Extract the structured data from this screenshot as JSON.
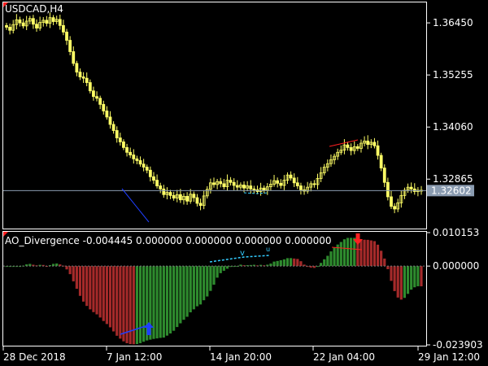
{
  "window": {
    "symbol_title": "USDCAD,H4"
  },
  "price_axis": {
    "ticks": [
      "1.36450",
      "1.35255",
      "1.34060",
      "1.32865"
    ],
    "tick_values": [
      1.3645,
      1.35255,
      1.3406,
      1.32865
    ],
    "current_price": "1.32602",
    "current_value": 1.32602
  },
  "indicator": {
    "title": "AO_Divergence -0.004445 0.000000 0.000000 0.000000 0.000000",
    "ticks": [
      "0.010153",
      "0.000000",
      "-0.023903"
    ],
    "tick_values": [
      0.010153,
      0.0,
      -0.023903
    ]
  },
  "time_axis": {
    "labels": [
      "28 Dec 2018",
      "7 Jan 12:00",
      "14 Jan 20:00",
      "22 Jan 04:00",
      "29 Jan 12:00"
    ]
  },
  "colors": {
    "background": "#000000",
    "grid_frame": "#ffffff",
    "candle": "#ffff66",
    "current_line": "#8a9bb0",
    "price_badge": "#8a9bb0",
    "ao_up": "#2e8b2e",
    "ao_down": "#a52a2a",
    "bull_divergence": "#1f3fff",
    "bear_divergence": "#ff2020",
    "hidden_divergence": "#33ccff",
    "arrow_up": "#1f3fff",
    "arrow_down": "#ff2020"
  },
  "chart_data": {
    "type": "candlestick",
    "symbol": "USDCAD",
    "timeframe": "H4",
    "ylim": [
      1.3175,
      1.369
    ],
    "close_series": [
      1.3635,
      1.3628,
      1.3641,
      1.3652,
      1.3645,
      1.3638,
      1.3649,
      1.3655,
      1.3642,
      1.3633,
      1.3646,
      1.3651,
      1.3644,
      1.3657,
      1.3648,
      1.3653,
      1.3639,
      1.3624,
      1.3605,
      1.3579,
      1.3552,
      1.3532,
      1.3521,
      1.3518,
      1.3508,
      1.3489,
      1.3476,
      1.3472,
      1.3458,
      1.3443,
      1.3429,
      1.3412,
      1.3398,
      1.3381,
      1.3372,
      1.3359,
      1.3348,
      1.3342,
      1.3333,
      1.3329,
      1.3321,
      1.3314,
      1.3307,
      1.3292,
      1.3284,
      1.3271,
      1.3264,
      1.3251,
      1.3256,
      1.3249,
      1.3243,
      1.3251,
      1.3239,
      1.3247,
      1.3236,
      1.3252,
      1.3244,
      1.3231,
      1.3226,
      1.3248,
      1.3263,
      1.3278,
      1.3274,
      1.3281,
      1.3276,
      1.3269,
      1.3284,
      1.3279,
      1.3272,
      1.3268,
      1.3273,
      1.3266,
      1.3271,
      1.3264,
      1.3262,
      1.3258,
      1.3266,
      1.3261,
      1.3269,
      1.3275,
      1.3283,
      1.3277,
      1.3272,
      1.3284,
      1.3296,
      1.3289,
      1.3278,
      1.3271,
      1.3262,
      1.3259,
      1.3268,
      1.3276,
      1.3274,
      1.3288,
      1.3301,
      1.3314,
      1.3322,
      1.3331,
      1.3339,
      1.3348,
      1.3353,
      1.3365,
      1.3359,
      1.3352,
      1.3361,
      1.3357,
      1.3369,
      1.3374,
      1.3366,
      1.3371,
      1.3363,
      1.3341,
      1.3312,
      1.3279,
      1.3246,
      1.3224,
      1.3218,
      1.3232,
      1.3249,
      1.3261,
      1.3268,
      1.3264,
      1.3258,
      1.3261,
      1.3259
    ]
  }
}
